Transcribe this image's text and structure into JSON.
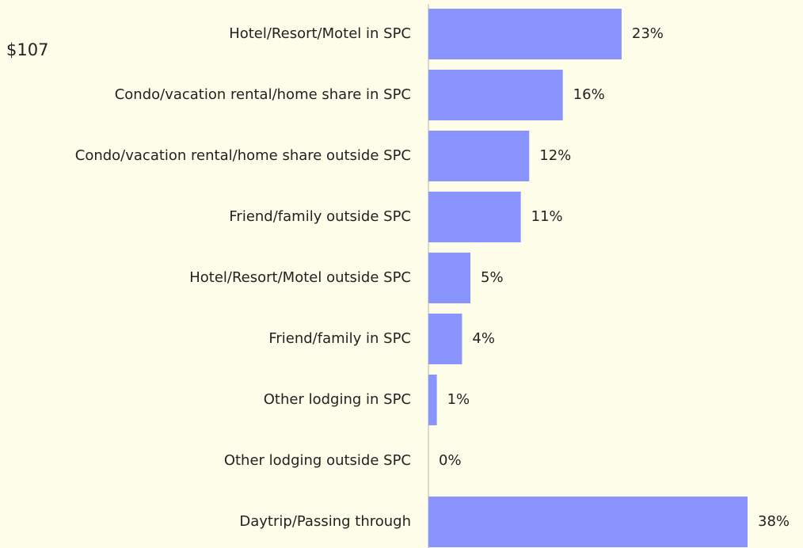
{
  "chart_data": {
    "type": "bar",
    "orientation": "horizontal",
    "annotation": "$107",
    "categories": [
      "Hotel/Resort/Motel in SPC",
      "Condo/vacation rental/home share in SPC",
      "Condo/vacation rental/home share outside SPC",
      "Friend/family outside SPC",
      "Hotel/Resort/Motel outside SPC",
      "Friend/family in SPC",
      "Other lodging in SPC",
      "Other lodging outside SPC",
      "Daytrip/Passing through"
    ],
    "values": [
      23,
      16,
      12,
      11,
      5,
      4,
      1,
      0,
      38
    ],
    "value_labels": [
      "23%",
      "16%",
      "12%",
      "11%",
      "5%",
      "4%",
      "1%",
      "0%",
      "38%"
    ],
    "color": "#8a94ff"
  }
}
